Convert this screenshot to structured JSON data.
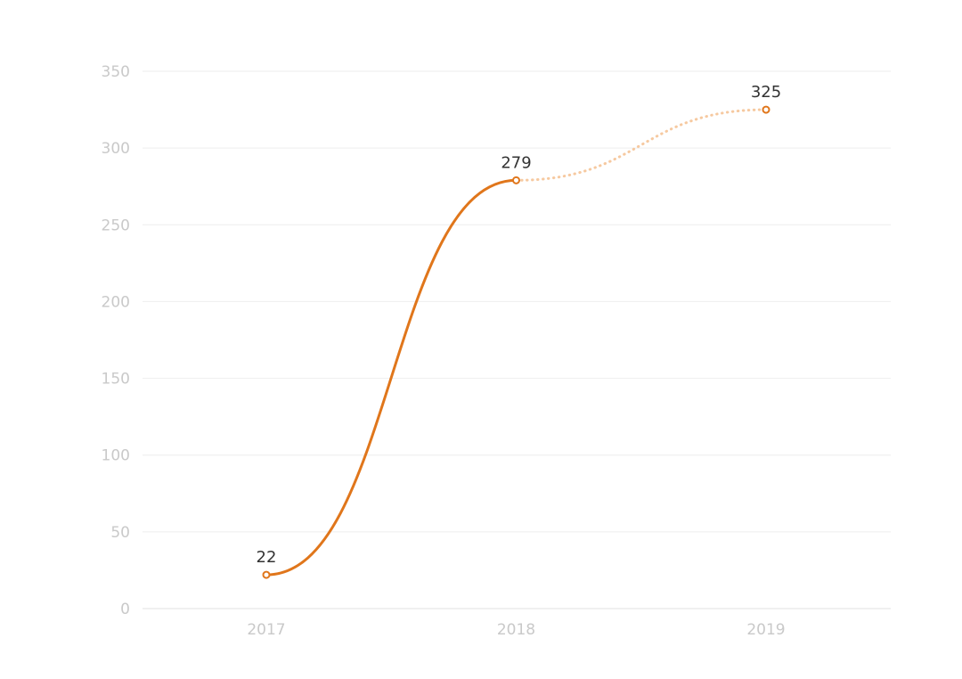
{
  "chart_data": {
    "type": "line",
    "categories": [
      "2017",
      "2018",
      "2019"
    ],
    "values": [
      22,
      279,
      325
    ],
    "data_labels": [
      "22",
      "279",
      "325"
    ],
    "projected_from_index": 1,
    "ylim": [
      0,
      350
    ],
    "y_ticks": [
      0,
      50,
      100,
      150,
      200,
      250,
      300,
      350
    ],
    "y_tick_labels": [
      "0",
      "50",
      "100",
      "150",
      "200",
      "250",
      "300",
      "350"
    ],
    "grid": true,
    "title": "",
    "xlabel": "",
    "ylabel": ""
  },
  "colors": {
    "line": "#e0761b",
    "projected_line": "#f6c9a0",
    "marker_fill": "#ffffff"
  }
}
